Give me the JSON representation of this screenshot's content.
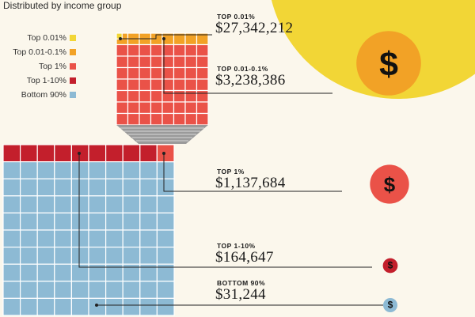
{
  "subtitle": "Distributed by income group",
  "legend": [
    {
      "label": "Top 0.01%",
      "color": "#f2d636"
    },
    {
      "label": "Top 0.01-0.1%",
      "color": "#f2a226"
    },
    {
      "label": "Top 1%",
      "color": "#ea5248"
    },
    {
      "label": "Top 1-10%",
      "color": "#c31f2c"
    },
    {
      "label": "Bottom 90%",
      "color": "#8dbad4"
    }
  ],
  "tiers": [
    {
      "heading": "TOP 0.01%",
      "amount": "$27,342,212"
    },
    {
      "heading": "TOP 0.01-0.1%",
      "amount": "$3,238,386"
    },
    {
      "heading": "TOP 1%",
      "amount": "$1,137,684"
    },
    {
      "heading": "TOP 1-10%",
      "amount": "$164,647"
    },
    {
      "heading": "BOTTOM 90%",
      "amount": "$31,244"
    }
  ],
  "coin_symbol": "$",
  "chart_data": {
    "type": "proportional-circles",
    "title": "",
    "subtitle": "Distributed by income group",
    "categories": [
      "Top 0.01%",
      "Top 0.01-0.1%",
      "Top 1%",
      "Top 1-10%",
      "Bottom 90%"
    ],
    "values": [
      27342212,
      3238386,
      1137684,
      164647,
      31244
    ],
    "value_labels": [
      "$27,342,212",
      "$3,238,386",
      "$1,137,684",
      "$164,647",
      "$31,244"
    ],
    "colors": [
      "#f2d636",
      "#f2a226",
      "#ea5248",
      "#c31f2c",
      "#8dbad4"
    ],
    "legend_position": "top-left",
    "grid": false
  }
}
